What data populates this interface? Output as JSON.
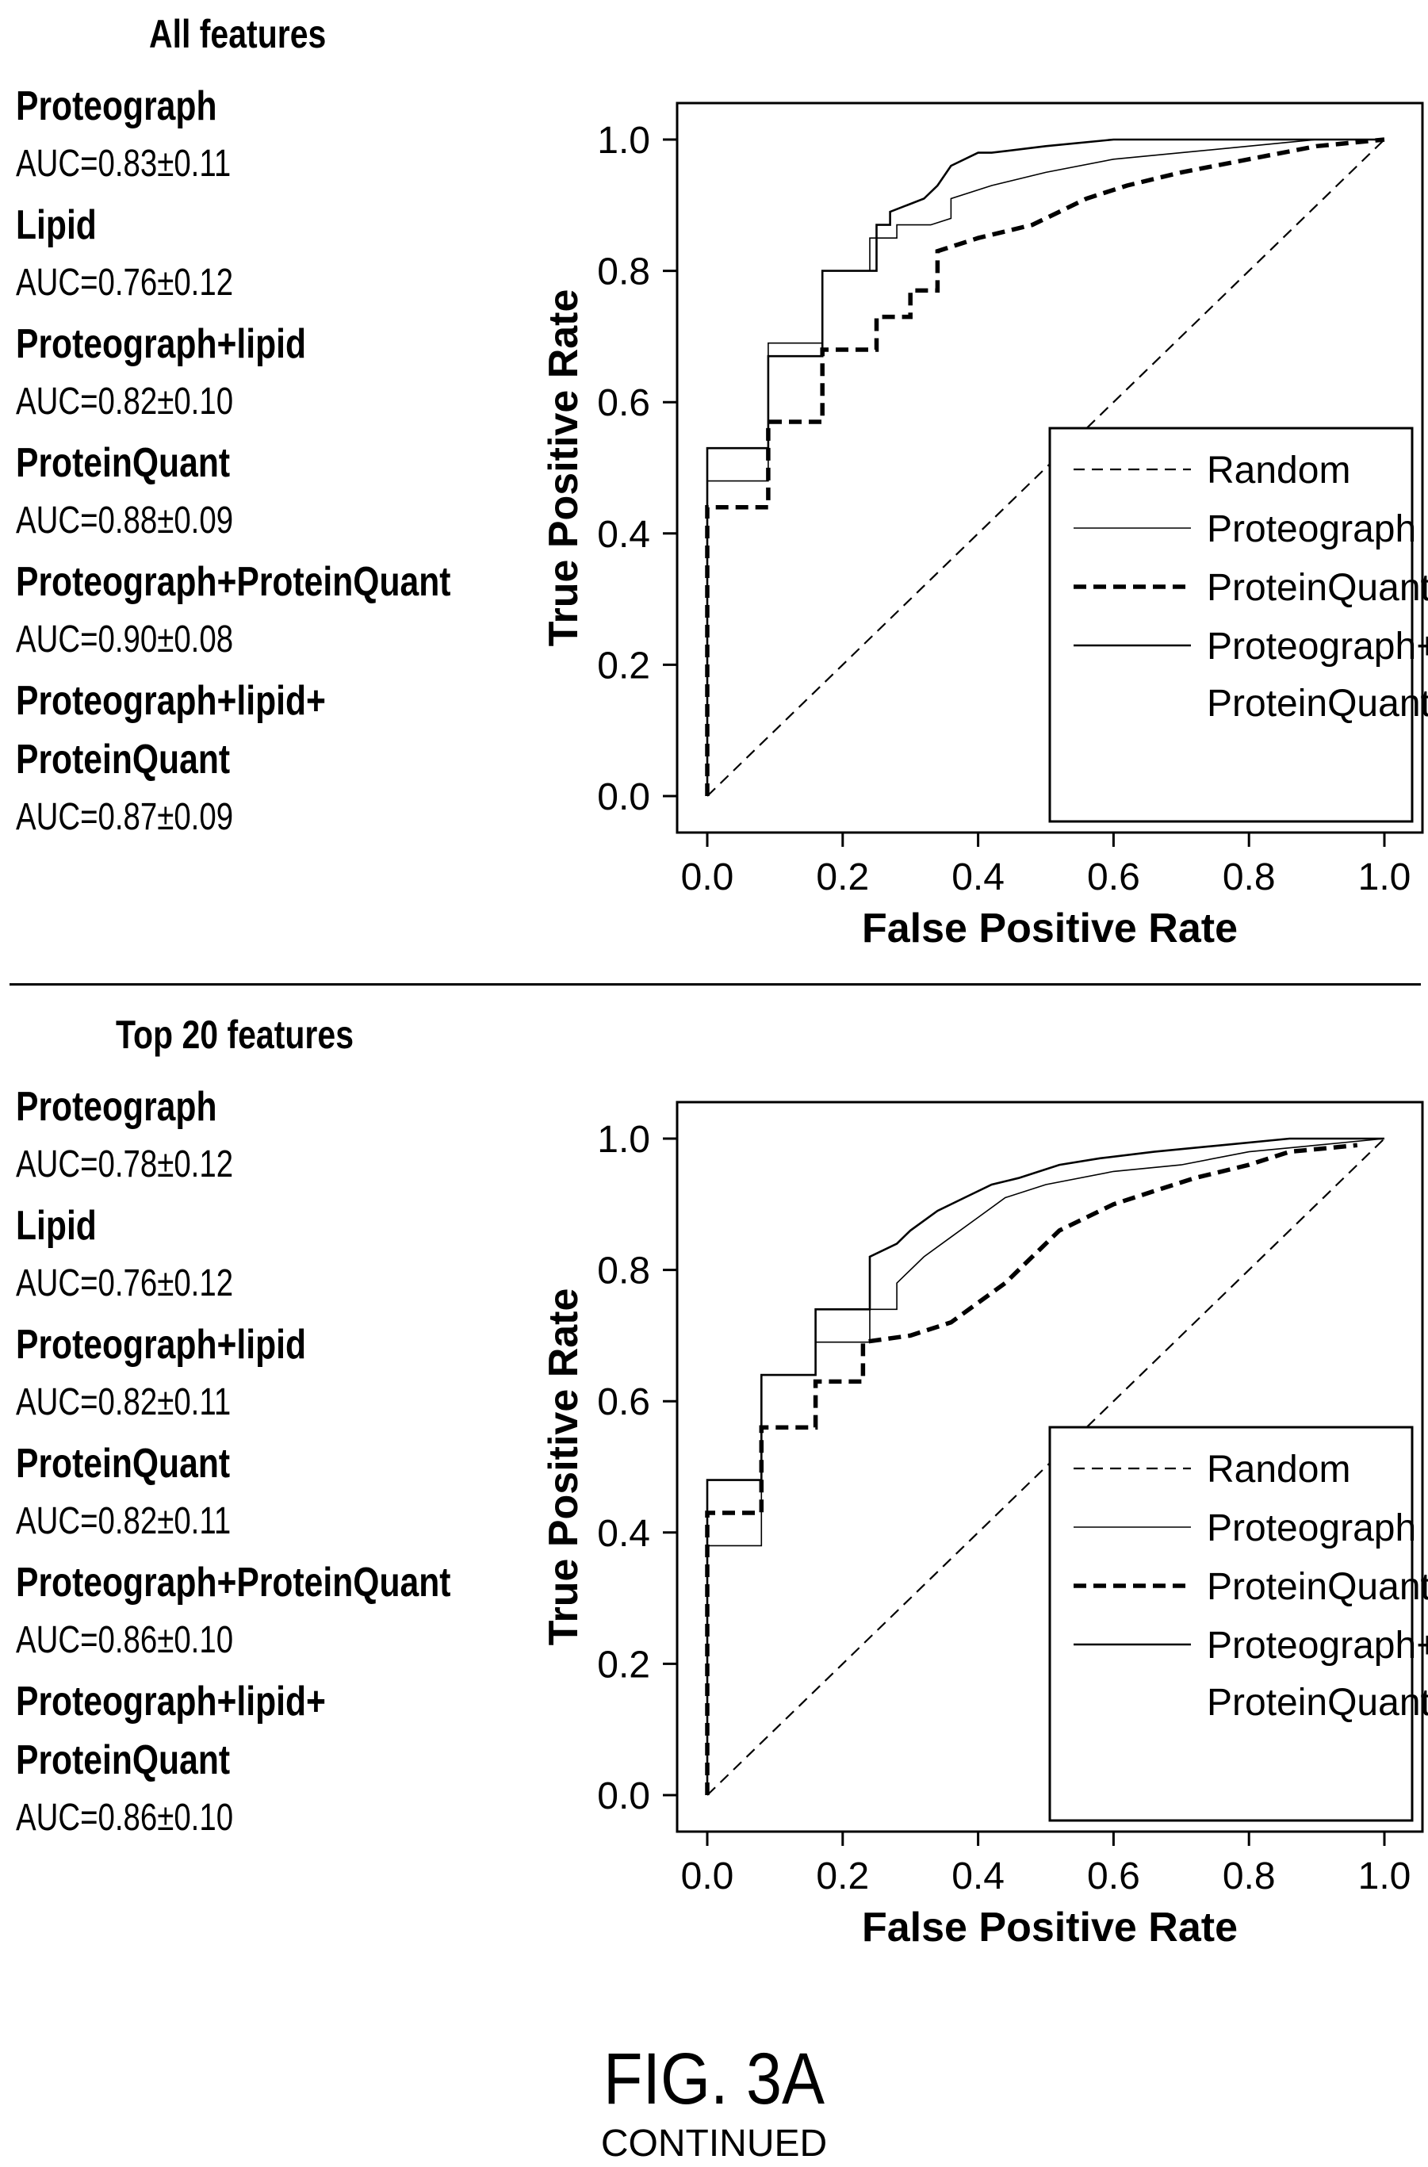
{
  "figure": {
    "label": "FIG. 3A",
    "sublabel": "CONTINUED"
  },
  "panels": [
    {
      "title": "All features",
      "auc_list": [
        {
          "name": "Proteograph",
          "value": "AUC=0.83±0.11"
        },
        {
          "name": "Lipid",
          "value": "AUC=0.76±0.12"
        },
        {
          "name": "Proteograph+lipid",
          "value": "AUC=0.82±0.10"
        },
        {
          "name": "ProteinQuant",
          "value": "AUC=0.88±0.09"
        },
        {
          "name": "Proteograph+ProteinQuant",
          "value": "AUC=0.90±0.08"
        },
        {
          "name": "Proteograph+lipid+",
          "name2": "ProteinQuant",
          "value": "AUC=0.87±0.09"
        }
      ]
    },
    {
      "title": "Top 20 features",
      "auc_list": [
        {
          "name": "Proteograph",
          "value": "AUC=0.78±0.12"
        },
        {
          "name": "Lipid",
          "value": "AUC=0.76±0.12"
        },
        {
          "name": "Proteograph+lipid",
          "value": "AUC=0.82±0.11"
        },
        {
          "name": "ProteinQuant",
          "value": "AUC=0.82±0.11"
        },
        {
          "name": "Proteograph+ProteinQuant",
          "value": "AUC=0.86±0.10"
        },
        {
          "name": "Proteograph+lipid+",
          "name2": "ProteinQuant",
          "value": "AUC=0.86±0.10"
        }
      ]
    }
  ],
  "chart_data": [
    {
      "type": "line",
      "xlabel": "False Positive Rate",
      "ylabel": "True Positive Rate",
      "xlim": [
        0,
        1
      ],
      "ylim": [
        0,
        1
      ],
      "xticks": [
        "0.0",
        "0.2",
        "0.4",
        "0.6",
        "0.8",
        "1.0"
      ],
      "yticks": [
        "0.0",
        "0.2",
        "0.4",
        "0.6",
        "0.8",
        "1.0"
      ],
      "legend_position": "bottom-right",
      "grid": false,
      "series": [
        {
          "name": "Random",
          "style": "dashed",
          "x": [
            0,
            1
          ],
          "y": [
            0,
            1
          ]
        },
        {
          "name": "Proteograph",
          "style": "thin-solid",
          "x": [
            0,
            0,
            0.09,
            0.09,
            0.17,
            0.17,
            0.24,
            0.24,
            0.28,
            0.28,
            0.33,
            0.36,
            0.36,
            0.42,
            0.5,
            0.6,
            0.7,
            0.8,
            0.9,
            1.0
          ],
          "y": [
            0,
            0.48,
            0.48,
            0.69,
            0.69,
            0.8,
            0.8,
            0.85,
            0.85,
            0.87,
            0.87,
            0.88,
            0.91,
            0.93,
            0.95,
            0.97,
            0.98,
            0.99,
            1.0,
            1.0
          ]
        },
        {
          "name": "ProteinQuant",
          "style": "thick-dashed",
          "x": [
            0,
            0,
            0.09,
            0.09,
            0.17,
            0.17,
            0.25,
            0.25,
            0.3,
            0.3,
            0.34,
            0.34,
            0.4,
            0.48,
            0.52,
            0.56,
            0.62,
            0.7,
            0.8,
            0.9,
            1.0
          ],
          "y": [
            0,
            0.44,
            0.44,
            0.57,
            0.57,
            0.68,
            0.68,
            0.73,
            0.73,
            0.77,
            0.77,
            0.83,
            0.85,
            0.87,
            0.89,
            0.91,
            0.93,
            0.95,
            0.97,
            0.99,
            1.0
          ]
        },
        {
          "name": "Proteograph+ProteinQuant",
          "style": "solid",
          "x": [
            0,
            0,
            0.09,
            0.09,
            0.17,
            0.17,
            0.25,
            0.25,
            0.27,
            0.27,
            0.32,
            0.34,
            0.36,
            0.4,
            0.42,
            0.5,
            0.6,
            0.8,
            1.0
          ],
          "y": [
            0,
            0.53,
            0.53,
            0.67,
            0.67,
            0.8,
            0.8,
            0.87,
            0.87,
            0.89,
            0.91,
            0.93,
            0.96,
            0.98,
            0.98,
            0.99,
            1.0,
            1.0,
            1.0
          ]
        }
      ]
    },
    {
      "type": "line",
      "xlabel": "False Positive Rate",
      "ylabel": "True Positive Rate",
      "xlim": [
        0,
        1
      ],
      "ylim": [
        0,
        1
      ],
      "xticks": [
        "0.0",
        "0.2",
        "0.4",
        "0.6",
        "0.8",
        "1.0"
      ],
      "yticks": [
        "0.0",
        "0.2",
        "0.4",
        "0.6",
        "0.8",
        "1.0"
      ],
      "legend_position": "bottom-right",
      "grid": false,
      "series": [
        {
          "name": "Random",
          "style": "dashed",
          "x": [
            0,
            1
          ],
          "y": [
            0,
            1
          ]
        },
        {
          "name": "Proteograph",
          "style": "thin-solid",
          "x": [
            0,
            0,
            0.08,
            0.08,
            0.16,
            0.16,
            0.24,
            0.24,
            0.28,
            0.28,
            0.32,
            0.36,
            0.4,
            0.44,
            0.5,
            0.6,
            0.7,
            0.8,
            0.9,
            1.0
          ],
          "y": [
            0,
            0.38,
            0.38,
            0.64,
            0.64,
            0.69,
            0.69,
            0.74,
            0.74,
            0.78,
            0.82,
            0.85,
            0.88,
            0.91,
            0.93,
            0.95,
            0.96,
            0.98,
            0.99,
            1.0
          ]
        },
        {
          "name": "ProteinQuant",
          "style": "thick-dashed",
          "x": [
            0,
            0,
            0.08,
            0.08,
            0.16,
            0.16,
            0.23,
            0.23,
            0.3,
            0.36,
            0.4,
            0.44,
            0.48,
            0.52,
            0.56,
            0.6,
            0.66,
            0.72,
            0.8,
            0.86,
            0.96
          ],
          "y": [
            0,
            0.43,
            0.43,
            0.56,
            0.56,
            0.63,
            0.63,
            0.69,
            0.7,
            0.72,
            0.75,
            0.78,
            0.82,
            0.86,
            0.88,
            0.9,
            0.92,
            0.94,
            0.96,
            0.98,
            0.99
          ]
        },
        {
          "name": "Proteograph+ProteinQuant",
          "style": "solid",
          "x": [
            0,
            0,
            0.08,
            0.08,
            0.16,
            0.16,
            0.24,
            0.24,
            0.28,
            0.3,
            0.34,
            0.38,
            0.42,
            0.46,
            0.52,
            0.58,
            0.66,
            0.76,
            0.86,
            1.0
          ],
          "y": [
            0,
            0.48,
            0.48,
            0.64,
            0.64,
            0.74,
            0.74,
            0.82,
            0.84,
            0.86,
            0.89,
            0.91,
            0.93,
            0.94,
            0.96,
            0.97,
            0.98,
            0.99,
            1.0,
            1.0
          ]
        }
      ]
    }
  ]
}
